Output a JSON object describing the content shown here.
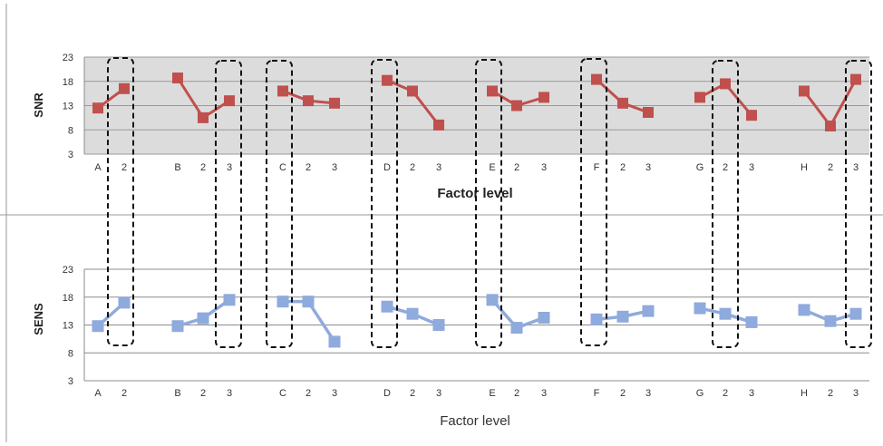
{
  "chart_data": [
    {
      "type": "line",
      "ylabel": "SNR",
      "xlabel": "Factor level",
      "ylim": [
        3,
        23
      ],
      "yticks": [
        3,
        8,
        13,
        18,
        23
      ],
      "grid": true,
      "background": "#dcdcdc",
      "color": "#c0504d",
      "groups": [
        {
          "labels": [
            "A",
            "2"
          ],
          "values": [
            12.5,
            16.5
          ]
        },
        {
          "labels": [
            "B",
            "2",
            "3"
          ],
          "values": [
            18.7,
            10.5,
            14.0
          ]
        },
        {
          "labels": [
            "C",
            "2",
            "3"
          ],
          "values": [
            16.0,
            14.0,
            13.5
          ]
        },
        {
          "labels": [
            "D",
            "2",
            "3"
          ],
          "values": [
            18.2,
            16.0,
            9.0
          ]
        },
        {
          "labels": [
            "E",
            "2",
            "3"
          ],
          "values": [
            16.0,
            13.0,
            14.7
          ]
        },
        {
          "labels": [
            "F",
            "2",
            "3"
          ],
          "values": [
            18.4,
            13.5,
            11.6
          ]
        },
        {
          "labels": [
            "G",
            "2",
            "3"
          ],
          "values": [
            14.7,
            17.5,
            11.0
          ]
        },
        {
          "labels": [
            "H",
            "2",
            "3"
          ],
          "values": [
            16.0,
            8.8,
            18.4
          ]
        }
      ]
    },
    {
      "type": "line",
      "ylabel": "SENS",
      "xlabel": "Factor level",
      "ylim": [
        3,
        23
      ],
      "yticks": [
        3,
        8,
        13,
        18,
        23
      ],
      "grid": true,
      "background": "#ffffff",
      "color": "#8faadc",
      "groups": [
        {
          "labels": [
            "A",
            "2"
          ],
          "values": [
            12.8,
            17.0
          ]
        },
        {
          "labels": [
            "B",
            "2",
            "3"
          ],
          "values": [
            12.8,
            14.2,
            17.5
          ]
        },
        {
          "labels": [
            "C",
            "2",
            "3"
          ],
          "values": [
            17.2,
            17.2,
            10.0
          ]
        },
        {
          "labels": [
            "D",
            "2",
            "3"
          ],
          "values": [
            16.3,
            15.0,
            13.0
          ]
        },
        {
          "labels": [
            "E",
            "2",
            "3"
          ],
          "values": [
            17.5,
            12.5,
            14.3
          ]
        },
        {
          "labels": [
            "F",
            "2",
            "3"
          ],
          "values": [
            14.0,
            14.5,
            15.5
          ]
        },
        {
          "labels": [
            "G",
            "2",
            "3"
          ],
          "values": [
            16.0,
            15.0,
            13.5
          ]
        },
        {
          "labels": [
            "H",
            "2",
            "3"
          ],
          "values": [
            15.7,
            13.7,
            15.0
          ]
        }
      ]
    }
  ],
  "highlights": [
    {
      "group": "A",
      "level": "2"
    },
    {
      "group": "B",
      "level": "3"
    },
    {
      "group": "C",
      "level": "C"
    },
    {
      "group": "D",
      "level": "D"
    },
    {
      "group": "E",
      "level": "E"
    },
    {
      "group": "F",
      "level": "F"
    },
    {
      "group": "G",
      "level": "2"
    },
    {
      "group": "H",
      "level": "3"
    }
  ]
}
